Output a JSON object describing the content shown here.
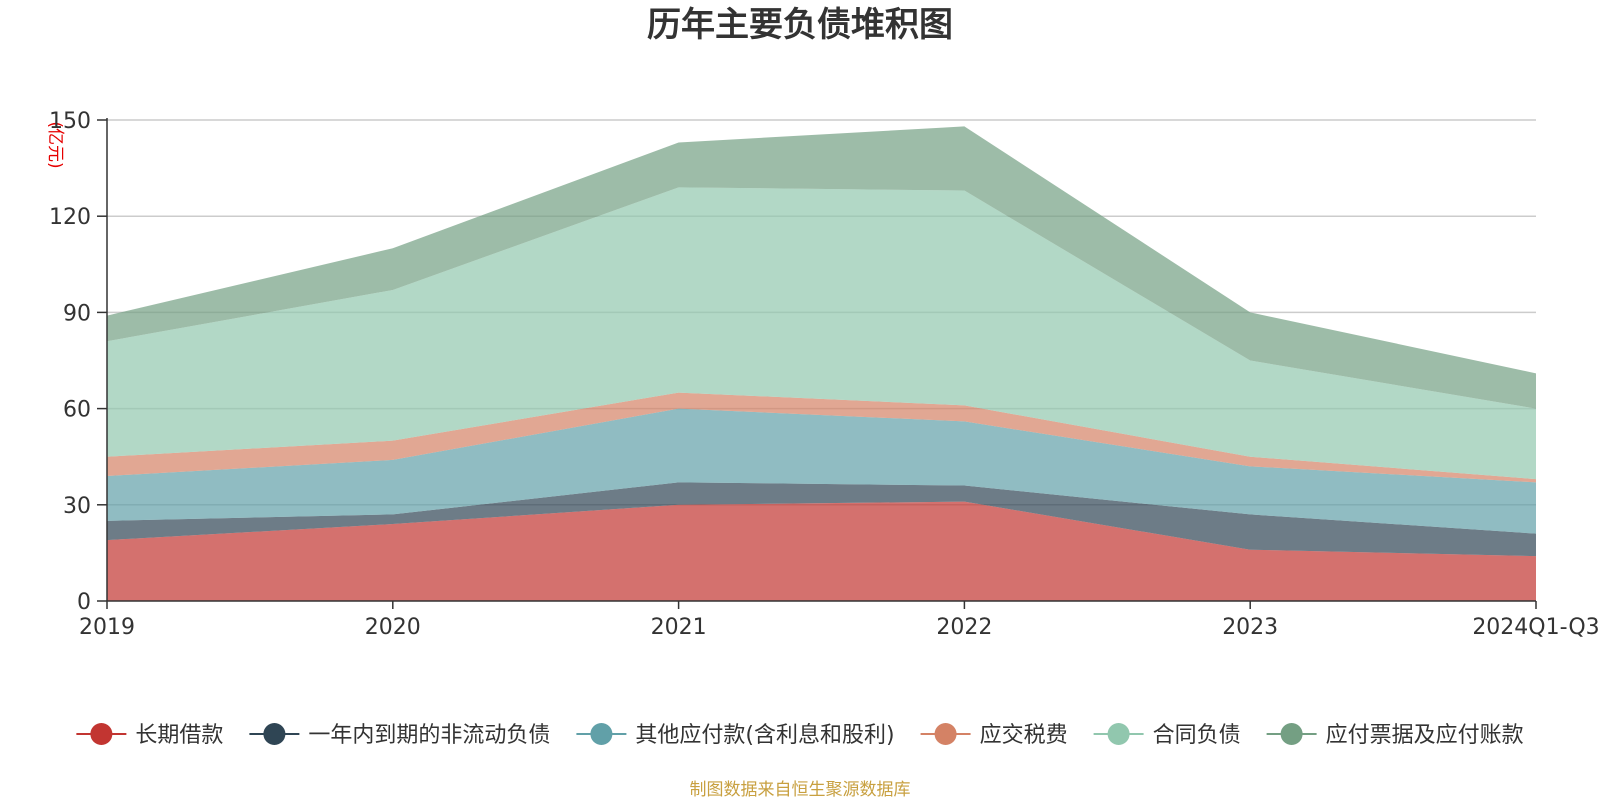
{
  "chart_data": {
    "type": "area",
    "stacked": true,
    "title": "历年主要负债堆积图",
    "unit_label": "(亿元)",
    "categories": [
      "2019",
      "2020",
      "2021",
      "2022",
      "2023",
      "2024Q1-Q3"
    ],
    "ylim": [
      0,
      150
    ],
    "yticks": [
      0,
      30,
      60,
      90,
      120,
      150
    ],
    "grid": true,
    "legend_position": "bottom",
    "series": [
      {
        "name": "长期借款",
        "color": "#c23531",
        "values": [
          19,
          24,
          30,
          31,
          16,
          14
        ]
      },
      {
        "name": "一年内到期的非流动负债",
        "color": "#2f4554",
        "values": [
          6,
          3,
          7,
          5,
          11,
          7
        ]
      },
      {
        "name": "其他应付款(含利息和股利)",
        "color": "#61a0a8",
        "values": [
          14,
          17,
          23,
          20,
          15,
          16
        ]
      },
      {
        "name": "应交税费",
        "color": "#d48265",
        "values": [
          6,
          6,
          5,
          5,
          3,
          1
        ]
      },
      {
        "name": "合同负债",
        "color": "#91c7ae",
        "values": [
          36,
          47,
          64,
          67,
          30,
          22
        ]
      },
      {
        "name": "应付票据及应付账款",
        "color": "#749f83",
        "values": [
          8,
          13,
          14,
          20,
          15,
          11
        ]
      }
    ]
  },
  "footer": {
    "source": "制图数据来自恒生聚源数据库"
  }
}
